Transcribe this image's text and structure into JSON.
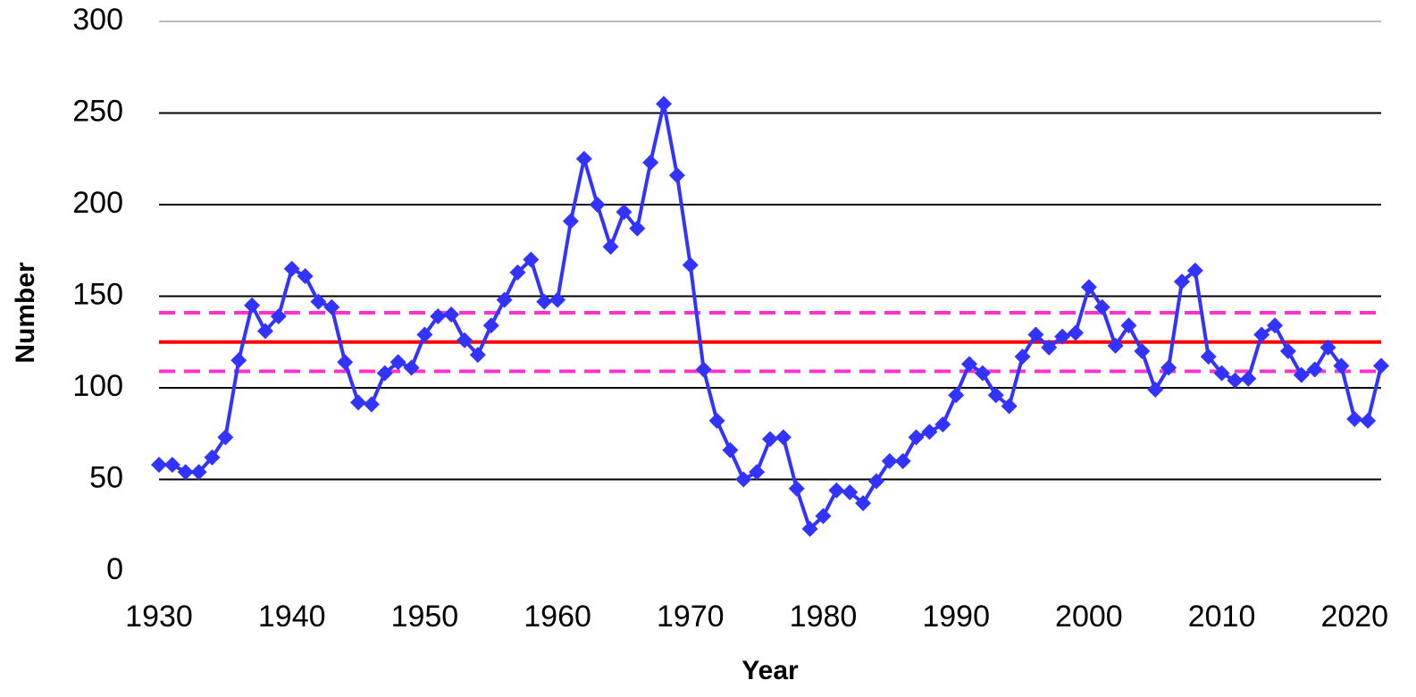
{
  "chart_data": {
    "type": "line",
    "x_label": "Year",
    "y_label": "Number",
    "x": [
      1930,
      1931,
      1932,
      1933,
      1934,
      1935,
      1936,
      1937,
      1938,
      1939,
      1940,
      1941,
      1942,
      1943,
      1944,
      1945,
      1946,
      1947,
      1948,
      1949,
      1950,
      1951,
      1952,
      1953,
      1954,
      1955,
      1956,
      1957,
      1958,
      1959,
      1960,
      1961,
      1962,
      1963,
      1964,
      1965,
      1966,
      1967,
      1968,
      1969,
      1970,
      1971,
      1972,
      1973,
      1974,
      1975,
      1976,
      1977,
      1978,
      1979,
      1980,
      1981,
      1982,
      1983,
      1984,
      1985,
      1986,
      1987,
      1988,
      1989,
      1990,
      1991,
      1992,
      1993,
      1994,
      1995,
      1996,
      1997,
      1998,
      1999,
      2000,
      2001,
      2002,
      2003,
      2004,
      2005,
      2006,
      2007,
      2008,
      2009,
      2010,
      2011,
      2012,
      2013,
      2014,
      2015,
      2016,
      2017,
      2018,
      2019,
      2020,
      2021,
      2022
    ],
    "series": [
      {
        "color": "#3333ff",
        "values": [
          58,
          58,
          54,
          54,
          62,
          73,
          115,
          145,
          131,
          139,
          165,
          161,
          147,
          144,
          114,
          92,
          91,
          108,
          114,
          111,
          129,
          139,
          140,
          126,
          118,
          134,
          148,
          163,
          170,
          147,
          148,
          191,
          225,
          200,
          177,
          196,
          187,
          223,
          255,
          216,
          167,
          110,
          82,
          66,
          50,
          54,
          72,
          73,
          45,
          23,
          30,
          44,
          43,
          37,
          49,
          60,
          60,
          73,
          76,
          80,
          96,
          113,
          108,
          96,
          90,
          117,
          129,
          122,
          128,
          130,
          155,
          144,
          123,
          134,
          120,
          99,
          111,
          158,
          164,
          117,
          108,
          104,
          105,
          129,
          134,
          120,
          107,
          110,
          122,
          112,
          83,
          82,
          112
        ]
      }
    ],
    "hlines": [
      {
        "value": 125,
        "color": "#ff0000",
        "dashed": false
      },
      {
        "value": 141,
        "color": "#ff33cc",
        "dashed": true
      },
      {
        "value": 109,
        "color": "#ff33cc",
        "dashed": true
      }
    ],
    "xlim": [
      1930,
      2022
    ],
    "xticks": [
      1930,
      1940,
      1950,
      1960,
      1970,
      1980,
      1990,
      2000,
      2010,
      2020
    ],
    "ylim": [
      0,
      300
    ],
    "yticks": [
      0,
      50,
      100,
      150,
      200,
      250,
      300
    ],
    "grid": true
  }
}
